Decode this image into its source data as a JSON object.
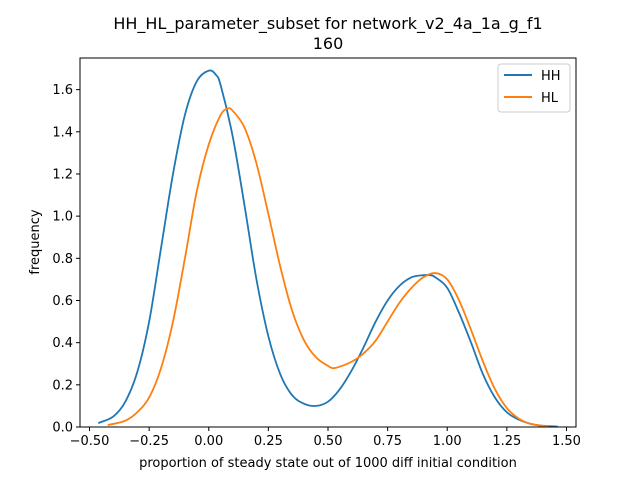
{
  "chart_data": {
    "type": "line",
    "title": "HH_HL_parameter_subset for network_v2_4a_1a_g_f1",
    "subtitle": "160",
    "xlabel": "proportion of steady state out of 1000 diff initial condition",
    "ylabel": "frequency",
    "xlim": [
      -0.5,
      1.5
    ],
    "ylim": [
      0.0,
      1.75
    ],
    "xticks": [
      -0.5,
      -0.25,
      0.0,
      0.25,
      0.5,
      0.75,
      1.0,
      1.25,
      1.5
    ],
    "xtick_labels": [
      "−0.50",
      "−0.25",
      "0.00",
      "0.25",
      "0.50",
      "0.75",
      "1.00",
      "1.25",
      "1.50"
    ],
    "yticks": [
      0.0,
      0.2,
      0.4,
      0.6,
      0.8,
      1.0,
      1.2,
      1.4,
      1.6
    ],
    "ytick_labels": [
      "0.0",
      "0.2",
      "0.4",
      "0.6",
      "0.8",
      "1.0",
      "1.2",
      "1.4",
      "1.6"
    ],
    "grid": false,
    "legend_position": "upper right",
    "series": [
      {
        "name": "HH",
        "color": "#1f77b4",
        "x": [
          -0.46,
          -0.4,
          -0.35,
          -0.3,
          -0.25,
          -0.2,
          -0.15,
          -0.1,
          -0.05,
          0.0,
          0.03,
          0.05,
          0.1,
          0.15,
          0.2,
          0.25,
          0.3,
          0.35,
          0.4,
          0.45,
          0.5,
          0.55,
          0.6,
          0.65,
          0.7,
          0.75,
          0.8,
          0.85,
          0.9,
          0.93,
          0.95,
          1.0,
          1.05,
          1.1,
          1.15,
          1.2,
          1.25,
          1.3,
          1.35,
          1.4,
          1.46
        ],
        "y": [
          0.02,
          0.05,
          0.12,
          0.26,
          0.5,
          0.85,
          1.2,
          1.48,
          1.64,
          1.69,
          1.67,
          1.62,
          1.38,
          1.05,
          0.7,
          0.43,
          0.25,
          0.15,
          0.11,
          0.1,
          0.12,
          0.18,
          0.27,
          0.38,
          0.5,
          0.6,
          0.67,
          0.71,
          0.72,
          0.72,
          0.71,
          0.66,
          0.54,
          0.4,
          0.25,
          0.14,
          0.07,
          0.035,
          0.015,
          0.006,
          0.002
        ]
      },
      {
        "name": "HL",
        "color": "#ff7f0e",
        "x": [
          -0.42,
          -0.35,
          -0.3,
          -0.25,
          -0.2,
          -0.15,
          -0.1,
          -0.05,
          0.0,
          0.05,
          0.08,
          0.1,
          0.15,
          0.2,
          0.25,
          0.3,
          0.35,
          0.4,
          0.45,
          0.5,
          0.53,
          0.6,
          0.65,
          0.7,
          0.75,
          0.8,
          0.85,
          0.9,
          0.95,
          1.0,
          1.05,
          1.1,
          1.15,
          1.2,
          1.25,
          1.3,
          1.35,
          1.42
        ],
        "y": [
          0.01,
          0.03,
          0.07,
          0.14,
          0.28,
          0.5,
          0.8,
          1.12,
          1.34,
          1.48,
          1.51,
          1.5,
          1.42,
          1.25,
          1.01,
          0.76,
          0.55,
          0.41,
          0.33,
          0.29,
          0.28,
          0.31,
          0.35,
          0.41,
          0.5,
          0.59,
          0.66,
          0.71,
          0.73,
          0.7,
          0.6,
          0.46,
          0.31,
          0.18,
          0.09,
          0.04,
          0.015,
          0.003
        ]
      }
    ]
  }
}
